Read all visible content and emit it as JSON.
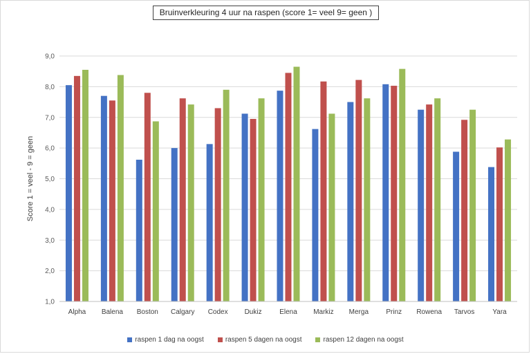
{
  "chart_data": {
    "type": "bar",
    "title": "Bruinverkleuring 4 uur na raspen (score 1= veel 9= geen )",
    "ylabel": "Score 1 = veel - 9 = geen",
    "xlabel": "",
    "ylim": [
      1.0,
      9.0
    ],
    "yticks": [
      "1,0",
      "2,0",
      "3,0",
      "4,0",
      "5,0",
      "6,0",
      "7,0",
      "8,0",
      "9,0"
    ],
    "grid": true,
    "legend_position": "bottom",
    "categories": [
      "Alpha",
      "Balena",
      "Boston",
      "Calgary",
      "Codex",
      "Dukiz",
      "Elena",
      "Markiz",
      "Merga",
      "Prinz",
      "Rowena",
      "Tarvos",
      "Yara"
    ],
    "series": [
      {
        "name": "raspen 1 dag na oogst",
        "color": "#4472c4",
        "values": [
          8.05,
          7.7,
          5.62,
          6.0,
          6.13,
          7.12,
          7.87,
          6.62,
          7.5,
          8.08,
          7.25,
          5.88,
          5.38
        ]
      },
      {
        "name": "raspen 5 dagen na oogst",
        "color": "#c0504d",
        "values": [
          8.35,
          7.55,
          7.8,
          7.62,
          7.3,
          6.95,
          8.45,
          8.17,
          8.22,
          8.03,
          7.42,
          6.92,
          6.02
        ]
      },
      {
        "name": "raspen 12 dagen na oogst",
        "color": "#9bbb59",
        "values": [
          8.55,
          8.38,
          6.87,
          7.42,
          7.9,
          7.62,
          8.65,
          7.12,
          7.62,
          8.58,
          7.62,
          7.25,
          6.28
        ]
      }
    ]
  }
}
